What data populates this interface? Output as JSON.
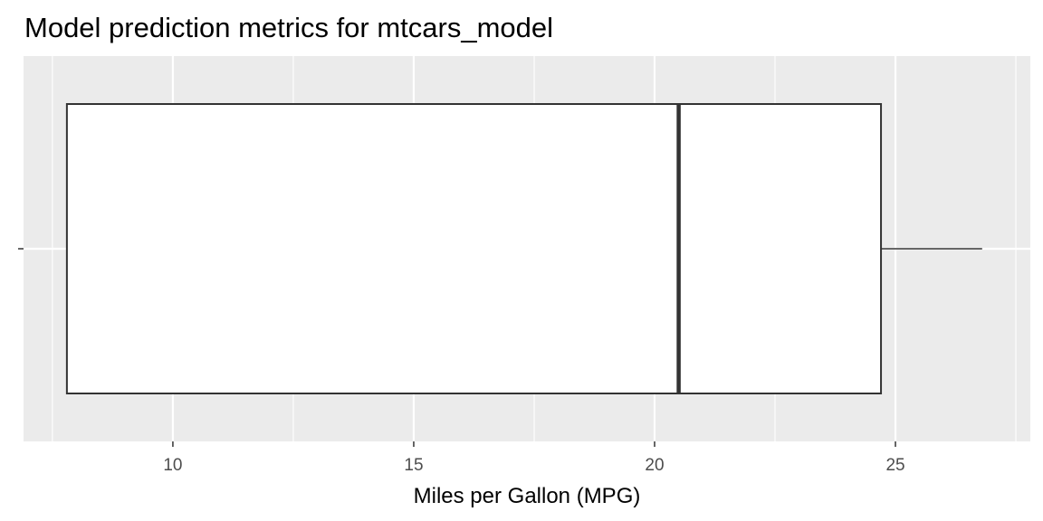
{
  "chart_data": {
    "type": "boxplot",
    "title": "Model prediction metrics for mtcars_model",
    "xlabel": "Miles per Gallon (MPG)",
    "ylabel": "",
    "xlim": [
      6.9,
      27.8
    ],
    "x_ticks": [
      10,
      15,
      20,
      25
    ],
    "x_tick_labels": [
      "10",
      "15",
      "20",
      "25"
    ],
    "grid": true,
    "orientation": "horizontal",
    "box": {
      "whisker_low": 7.8,
      "q1": 7.8,
      "median": 20.5,
      "q3": 24.7,
      "whisker_high": 26.8
    }
  }
}
